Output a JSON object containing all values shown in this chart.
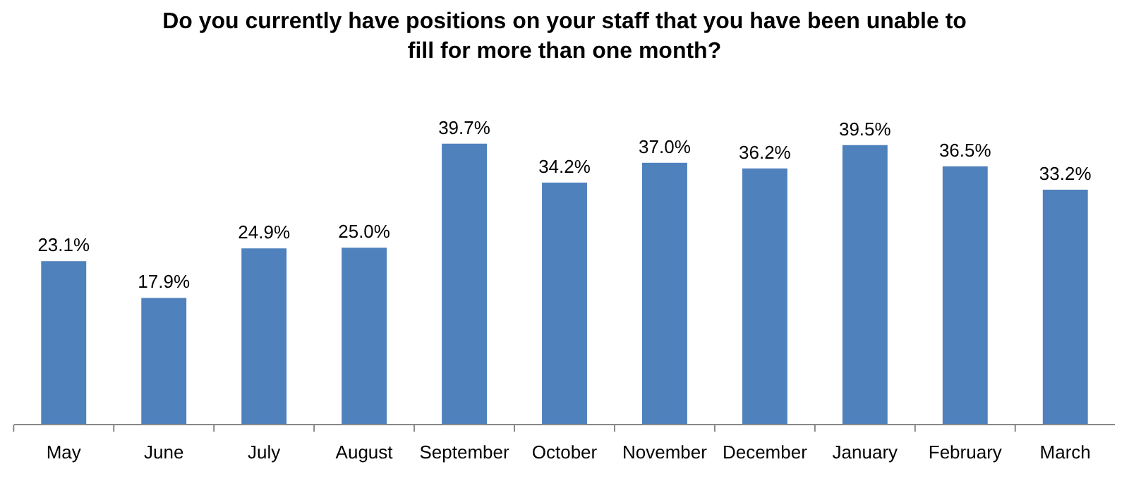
{
  "chart_data": {
    "type": "bar",
    "title": "Do you currently have positions on your staff that you have been unable to fill for more than one month?",
    "categories": [
      "May",
      "June",
      "July",
      "August",
      "September",
      "October",
      "November",
      "December",
      "January",
      "February",
      "March"
    ],
    "values": [
      23.1,
      17.9,
      24.9,
      25.0,
      39.7,
      34.2,
      37.0,
      36.2,
      39.5,
      36.5,
      33.2
    ],
    "value_labels": [
      "23.1%",
      "17.9%",
      "24.9%",
      "25.0%",
      "39.7%",
      "34.2%",
      "37.0%",
      "36.2%",
      "39.5%",
      "36.5%",
      "33.2%"
    ],
    "color": "#4f81bd"
  }
}
